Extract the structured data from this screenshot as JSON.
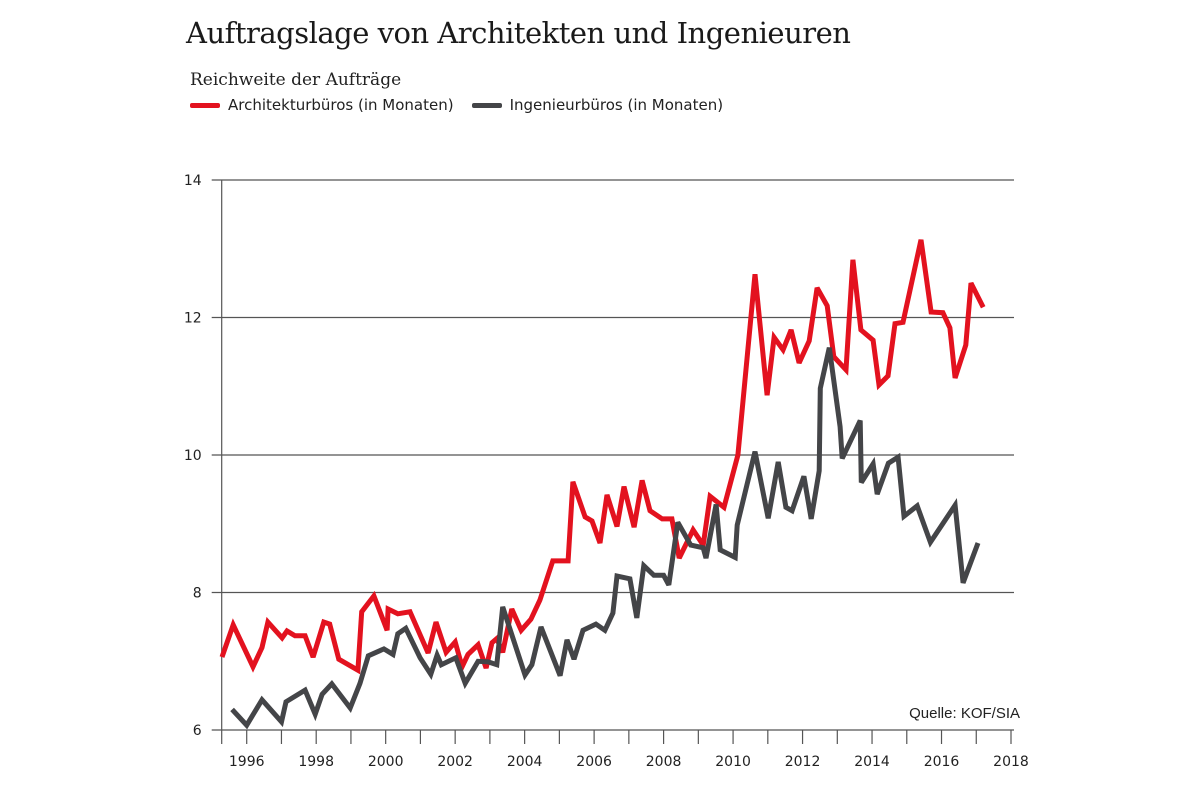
{
  "chart_data": {
    "type": "line",
    "title": "Auftragslage von Architekten und Ingenieuren",
    "subtitle": "Reichweite der Aufträge",
    "source": "Quelle: KOF/SIA",
    "xlim": [
      1995.28,
      2018
    ],
    "ylim": [
      6,
      14
    ],
    "x_ticks": [
      1996,
      1998,
      2000,
      2002,
      2004,
      2006,
      2008,
      2010,
      2012,
      2014,
      2016,
      2018
    ],
    "y_ticks": [
      6,
      8,
      10,
      12,
      14
    ],
    "grid": "horizontal",
    "legend_placement": "top-left",
    "series": [
      {
        "name": "Architekturbüros (in Monaten)",
        "color": "#e3121f",
        "points": [
          [
            1995.29,
            7.06
          ],
          [
            1995.61,
            7.53
          ],
          [
            1996.18,
            6.92
          ],
          [
            1996.44,
            7.2
          ],
          [
            1996.61,
            7.57
          ],
          [
            1997.02,
            7.34
          ],
          [
            1997.16,
            7.44
          ],
          [
            1997.39,
            7.37
          ],
          [
            1997.68,
            7.37
          ],
          [
            1997.91,
            7.06
          ],
          [
            1998.22,
            7.57
          ],
          [
            1998.39,
            7.54
          ],
          [
            1998.65,
            7.03
          ],
          [
            1999.2,
            6.87
          ],
          [
            1999.31,
            7.72
          ],
          [
            1999.66,
            7.95
          ],
          [
            2000.04,
            7.45
          ],
          [
            2000.07,
            7.76
          ],
          [
            2000.35,
            7.69
          ],
          [
            2000.7,
            7.72
          ],
          [
            2001.22,
            7.12
          ],
          [
            2001.45,
            7.57
          ],
          [
            2001.74,
            7.13
          ],
          [
            2002.0,
            7.28
          ],
          [
            2002.2,
            6.92
          ],
          [
            2002.37,
            7.1
          ],
          [
            2002.66,
            7.24
          ],
          [
            2002.89,
            6.9
          ],
          [
            2003.06,
            7.27
          ],
          [
            2003.2,
            7.33
          ],
          [
            2003.37,
            7.13
          ],
          [
            2003.63,
            7.76
          ],
          [
            2003.9,
            7.45
          ],
          [
            2004.18,
            7.61
          ],
          [
            2004.44,
            7.89
          ],
          [
            2004.81,
            8.46
          ],
          [
            2005.25,
            8.46
          ],
          [
            2005.39,
            9.61
          ],
          [
            2005.74,
            9.1
          ],
          [
            2005.94,
            9.04
          ],
          [
            2006.17,
            8.72
          ],
          [
            2006.37,
            9.42
          ],
          [
            2006.66,
            8.96
          ],
          [
            2006.86,
            9.54
          ],
          [
            2007.15,
            8.95
          ],
          [
            2007.38,
            9.63
          ],
          [
            2007.61,
            9.19
          ],
          [
            2007.96,
            9.07
          ],
          [
            2008.24,
            9.07
          ],
          [
            2008.45,
            8.5
          ],
          [
            2008.85,
            8.91
          ],
          [
            2009.14,
            8.69
          ],
          [
            2009.34,
            9.4
          ],
          [
            2009.74,
            9.24
          ],
          [
            2010.14,
            10.0
          ],
          [
            2010.63,
            12.63
          ],
          [
            2010.98,
            10.87
          ],
          [
            2011.18,
            11.71
          ],
          [
            2011.44,
            11.53
          ],
          [
            2011.67,
            11.82
          ],
          [
            2011.9,
            11.34
          ],
          [
            2012.19,
            11.66
          ],
          [
            2012.42,
            12.43
          ],
          [
            2012.71,
            12.17
          ],
          [
            2012.9,
            11.43
          ],
          [
            2013.25,
            11.24
          ],
          [
            2013.45,
            12.84
          ],
          [
            2013.68,
            11.82
          ],
          [
            2014.03,
            11.67
          ],
          [
            2014.2,
            11.02
          ],
          [
            2014.46,
            11.15
          ],
          [
            2014.66,
            11.91
          ],
          [
            2014.89,
            11.93
          ],
          [
            2015.41,
            13.13
          ],
          [
            2015.7,
            12.08
          ],
          [
            2016.04,
            12.07
          ],
          [
            2016.24,
            11.85
          ],
          [
            2016.39,
            11.12
          ],
          [
            2016.7,
            11.6
          ],
          [
            2016.85,
            12.5
          ],
          [
            2017.2,
            12.15
          ]
        ]
      },
      {
        "name": "Ingenieurbüros (in Monaten)",
        "color": "#444548",
        "points": [
          [
            1995.58,
            6.3
          ],
          [
            1996.0,
            6.07
          ],
          [
            1996.44,
            6.44
          ],
          [
            1997.0,
            6.12
          ],
          [
            1997.13,
            6.41
          ],
          [
            1997.68,
            6.58
          ],
          [
            1997.97,
            6.23
          ],
          [
            1998.17,
            6.52
          ],
          [
            1998.45,
            6.67
          ],
          [
            1998.98,
            6.32
          ],
          [
            1999.26,
            6.68
          ],
          [
            1999.5,
            7.08
          ],
          [
            1999.95,
            7.18
          ],
          [
            2000.21,
            7.1
          ],
          [
            2000.35,
            7.4
          ],
          [
            2000.58,
            7.48
          ],
          [
            2000.99,
            7.05
          ],
          [
            2001.3,
            6.81
          ],
          [
            2001.48,
            7.09
          ],
          [
            2001.6,
            6.95
          ],
          [
            2002.02,
            7.05
          ],
          [
            2002.29,
            6.68
          ],
          [
            2002.66,
            7.0
          ],
          [
            2002.95,
            6.99
          ],
          [
            2003.2,
            6.95
          ],
          [
            2003.37,
            7.79
          ],
          [
            2004.01,
            6.8
          ],
          [
            2004.21,
            6.95
          ],
          [
            2004.47,
            7.5
          ],
          [
            2005.02,
            6.79
          ],
          [
            2005.22,
            7.31
          ],
          [
            2005.42,
            7.03
          ],
          [
            2005.68,
            7.45
          ],
          [
            2006.05,
            7.54
          ],
          [
            2006.31,
            7.45
          ],
          [
            2006.54,
            7.7
          ],
          [
            2006.66,
            8.24
          ],
          [
            2007.03,
            8.2
          ],
          [
            2007.23,
            7.63
          ],
          [
            2007.43,
            8.39
          ],
          [
            2007.72,
            8.25
          ],
          [
            2008.0,
            8.25
          ],
          [
            2008.15,
            8.11
          ],
          [
            2008.41,
            9.02
          ],
          [
            2008.78,
            8.69
          ],
          [
            2009.14,
            8.65
          ],
          [
            2009.22,
            8.5
          ],
          [
            2009.51,
            9.28
          ],
          [
            2009.63,
            8.62
          ],
          [
            2010.06,
            8.51
          ],
          [
            2010.12,
            8.98
          ],
          [
            2010.63,
            10.05
          ],
          [
            2011.01,
            9.08
          ],
          [
            2011.3,
            9.9
          ],
          [
            2011.52,
            9.24
          ],
          [
            2011.7,
            9.19
          ],
          [
            2012.04,
            9.69
          ],
          [
            2012.25,
            9.07
          ],
          [
            2012.48,
            9.77
          ],
          [
            2012.51,
            10.97
          ],
          [
            2012.77,
            11.56
          ],
          [
            2013.08,
            10.41
          ],
          [
            2013.14,
            9.95
          ],
          [
            2013.66,
            10.5
          ],
          [
            2013.69,
            9.6
          ],
          [
            2014.03,
            9.87
          ],
          [
            2014.15,
            9.43
          ],
          [
            2014.47,
            9.88
          ],
          [
            2014.75,
            9.97
          ],
          [
            2014.92,
            9.11
          ],
          [
            2015.3,
            9.26
          ],
          [
            2015.68,
            8.73
          ],
          [
            2016.39,
            9.27
          ],
          [
            2016.62,
            8.14
          ],
          [
            2017.05,
            8.72
          ]
        ]
      }
    ]
  }
}
